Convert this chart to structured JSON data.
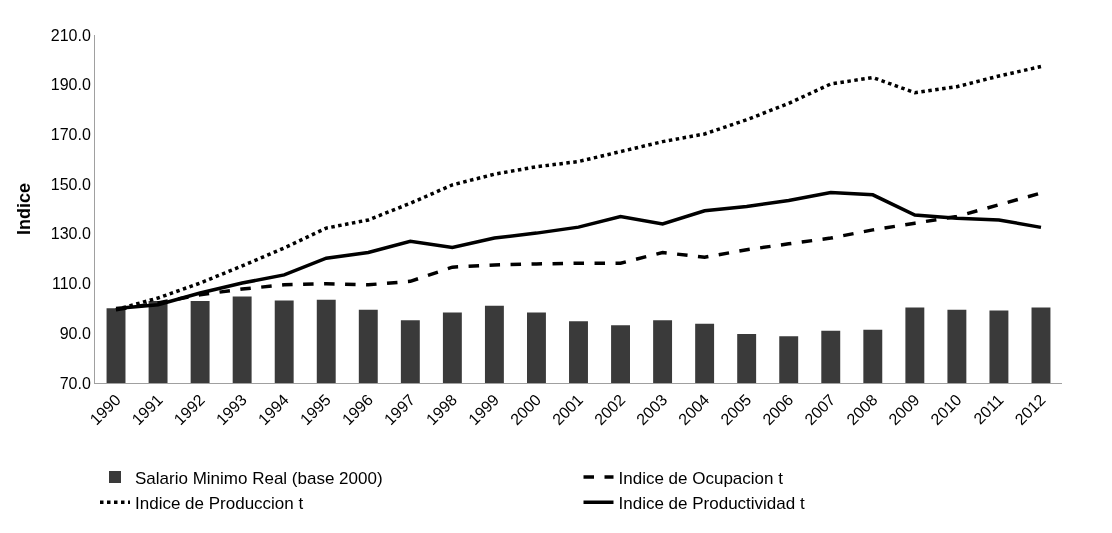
{
  "chart_data": {
    "type": "bar",
    "ylabel": "Indice",
    "categories": [
      "1990",
      "1991",
      "1992",
      "1993",
      "1994",
      "1995",
      "1996",
      "1997",
      "1998",
      "1999",
      "2000",
      "2001",
      "2002",
      "2003",
      "2004",
      "2005",
      "2006",
      "2007",
      "2008",
      "2009",
      "2010",
      "2011",
      "2012"
    ],
    "series": [
      {
        "name": "Salario Minimo Real (base 2000)",
        "color": "#3a3a3a",
        "values": [
          100.1,
          103.0,
          103.0,
          104.8,
          103.2,
          103.5,
          99.5,
          95.2,
          98.4,
          101.1,
          98.4,
          94.8,
          93.2,
          95.2,
          93.8,
          89.7,
          88.8,
          91.0,
          91.4,
          100.4,
          99.5,
          99.2,
          100.4
        ]
      },
      {
        "name": "Indice de Ocupacion t",
        "type": "line",
        "line_style": "dashed",
        "color": "#000000",
        "values": [
          99.5,
          102.2,
          105.5,
          107.8,
          109.5,
          109.9,
          109.5,
          110.9,
          116.6,
          117.5,
          117.9,
          118.2,
          118.2,
          122.5,
          120.6,
          123.6,
          126.0,
          128.3,
          131.6,
          134.3,
          137.0,
          141.7,
          146.4
        ]
      },
      {
        "name": "Indice de Produccion t",
        "type": "line",
        "line_style": "dotted",
        "color": "#000000",
        "values": [
          99.5,
          104.2,
          110.2,
          117.1,
          124.3,
          132.3,
          135.6,
          142.3,
          149.7,
          154.0,
          157.0,
          159.1,
          163.1,
          167.1,
          170.2,
          175.9,
          182.5,
          190.3,
          192.9,
          186.8,
          189.2,
          193.5,
          197.3
        ]
      },
      {
        "name": "Indice de Productividad t",
        "type": "line",
        "line_style": "solid",
        "color": "#000000",
        "values": [
          100.0,
          101.5,
          106.2,
          110.2,
          113.5,
          120.2,
          122.5,
          127.0,
          124.5,
          128.3,
          130.3,
          132.7,
          137.0,
          134.0,
          139.3,
          141.0,
          143.4,
          146.6,
          145.7,
          137.6,
          136.3,
          135.6,
          132.6
        ]
      }
    ],
    "ylim": [
      70,
      210
    ],
    "yticks": [
      {
        "value": 70,
        "label": "70.0"
      },
      {
        "value": 90,
        "label": "90.0"
      },
      {
        "value": 110,
        "label": "110.0"
      },
      {
        "value": 130,
        "label": "130.0"
      },
      {
        "value": 150,
        "label": "150.0"
      },
      {
        "value": 170,
        "label": "170.0"
      },
      {
        "value": 190,
        "label": "190.0"
      },
      {
        "value": 210,
        "label": "210.0"
      }
    ],
    "legend": "bottom",
    "marker": "none"
  }
}
